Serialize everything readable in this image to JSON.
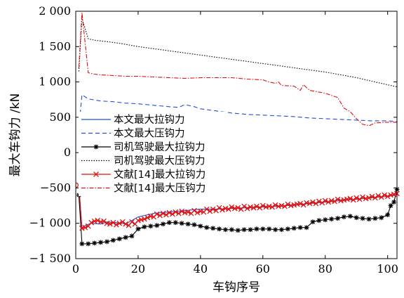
{
  "chart_data": {
    "type": "line",
    "xlabel": "车钩序号",
    "ylabel": "最大车钩力 /kN",
    "xlim": [
      0,
      103
    ],
    "ylim": [
      -1500,
      2000
    ],
    "x_ticks": [
      0,
      20,
      40,
      60,
      80,
      100
    ],
    "x_tick_labels": [
      "0",
      "20",
      "40",
      "60",
      "80",
      "100"
    ],
    "y_ticks": [
      -1500,
      -1000,
      -500,
      0,
      500,
      1000,
      1500,
      2000
    ],
    "y_tick_labels": [
      "−1 500",
      "−1 000",
      "−500",
      "0",
      "500",
      "1 000",
      "1 500",
      "2 000"
    ],
    "grid": false,
    "legend_position": "center-left",
    "series": [
      {
        "name": "本文最大拉钩力",
        "color": "#1f4fd8",
        "dash": "solid",
        "marker": "none",
        "x": [
          1,
          2,
          3,
          5,
          8,
          10,
          13,
          16,
          18,
          20,
          25,
          30,
          35,
          40,
          45,
          50,
          55,
          60,
          65,
          70,
          75,
          80,
          85,
          90,
          95,
          100,
          103
        ],
        "y": [
          -480,
          -1080,
          -1030,
          -1000,
          -1010,
          -980,
          -990,
          -1010,
          -960,
          -910,
          -860,
          -840,
          -820,
          -800,
          -800,
          -790,
          -780,
          -770,
          -760,
          -740,
          -720,
          -700,
          -680,
          -660,
          -640,
          -620,
          -600
        ]
      },
      {
        "name": "本文最大压钩力",
        "color": "#1f4fd8",
        "dash": "6,4",
        "marker": "none",
        "x": [
          1,
          2,
          4,
          8,
          12,
          16,
          20,
          25,
          30,
          33,
          35,
          38,
          40,
          45,
          50,
          55,
          60,
          65,
          70,
          75,
          80,
          85,
          90,
          95,
          100,
          103
        ],
        "y": [
          350,
          820,
          760,
          730,
          720,
          700,
          690,
          670,
          650,
          640,
          680,
          650,
          620,
          590,
          560,
          540,
          530,
          520,
          510,
          490,
          480,
          470,
          460,
          450,
          450,
          440
        ]
      },
      {
        "name": "司机驾驶最大拉钩力",
        "color": "#000000",
        "dash": "solid",
        "marker": "asterisk",
        "x": [
          1,
          2,
          4,
          6,
          8,
          10,
          12,
          14,
          16,
          18,
          20,
          22,
          24,
          26,
          28,
          30,
          32,
          34,
          36,
          38,
          40,
          42,
          44,
          46,
          48,
          50,
          52,
          54,
          56,
          58,
          60,
          62,
          64,
          66,
          68,
          70,
          72,
          74,
          76,
          78,
          80,
          82,
          84,
          86,
          88,
          90,
          92,
          94,
          96,
          98,
          100,
          101,
          102,
          103
        ],
        "y": [
          -600,
          -1290,
          -1290,
          -1280,
          -1270,
          -1260,
          -1240,
          -1220,
          -1200,
          -1180,
          -1080,
          -1050,
          -1040,
          -1030,
          -1010,
          -990,
          -990,
          -1000,
          -1010,
          -1020,
          -1040,
          -1060,
          -1070,
          -1080,
          -1090,
          -1090,
          -1100,
          -1090,
          -1090,
          -1080,
          -1080,
          -1080,
          -1090,
          -1090,
          -1080,
          -1070,
          -1060,
          -1060,
          -980,
          -960,
          -950,
          -940,
          -930,
          -910,
          -900,
          -920,
          -930,
          -940,
          -930,
          -920,
          -880,
          -750,
          -700,
          -520
        ]
      },
      {
        "name": "司机驾驶最大压钩力",
        "color": "#000000",
        "dash": "1.5,2",
        "marker": "none",
        "x": [
          1,
          2,
          4,
          6,
          10,
          15,
          20,
          25,
          30,
          35,
          40,
          45,
          50,
          55,
          60,
          65,
          70,
          75,
          80,
          85,
          90,
          95,
          100,
          103
        ],
        "y": [
          1150,
          1900,
          1610,
          1590,
          1570,
          1540,
          1500,
          1470,
          1440,
          1410,
          1380,
          1350,
          1320,
          1290,
          1260,
          1230,
          1200,
          1170,
          1140,
          1100,
          1060,
          1010,
          960,
          930
        ]
      },
      {
        "name": "文献[14]最大拉钩力",
        "color": "#dd1111",
        "dash": "solid",
        "marker": "x",
        "x": [
          1,
          2,
          3,
          4,
          5,
          6,
          7,
          8,
          9,
          10,
          11,
          12,
          13,
          14,
          15,
          16,
          17,
          18,
          19,
          20,
          21,
          22,
          23,
          24,
          25,
          26,
          27,
          28,
          29,
          30,
          31,
          32,
          33,
          34,
          35,
          36,
          37,
          38,
          39,
          40,
          41,
          42,
          43,
          44,
          45,
          46,
          47,
          48,
          49,
          50,
          51,
          52,
          53,
          54,
          55,
          56,
          57,
          58,
          59,
          60,
          61,
          62,
          63,
          64,
          65,
          66,
          67,
          68,
          69,
          70,
          71,
          72,
          73,
          74,
          75,
          76,
          77,
          78,
          79,
          80,
          81,
          82,
          83,
          84,
          85,
          86,
          87,
          88,
          89,
          90,
          91,
          92,
          93,
          94,
          95,
          96,
          97,
          98,
          99,
          100,
          101,
          102,
          103
        ],
        "y": [
          -460,
          -1070,
          -1060,
          -1040,
          -990,
          -970,
          -960,
          -980,
          -970,
          -1000,
          -1010,
          -990,
          -1020,
          -1000,
          -980,
          -1010,
          -1030,
          -980,
          -1010,
          -960,
          -950,
          -940,
          -920,
          -900,
          -910,
          -870,
          -890,
          -860,
          -880,
          -850,
          -870,
          -840,
          -860,
          -830,
          -850,
          -840,
          -860,
          -820,
          -850,
          -830,
          -840,
          -800,
          -830,
          -800,
          -820,
          -780,
          -810,
          -790,
          -800,
          -770,
          -790,
          -780,
          -800,
          -760,
          -790,
          -770,
          -780,
          -760,
          -780,
          -750,
          -770,
          -760,
          -770,
          -740,
          -760,
          -750,
          -760,
          -730,
          -750,
          -740,
          -730,
          -720,
          -740,
          -710,
          -720,
          -700,
          -720,
          -690,
          -710,
          -680,
          -700,
          -680,
          -690,
          -660,
          -680,
          -670,
          -660,
          -650,
          -670,
          -640,
          -660,
          -630,
          -650,
          -640,
          -620,
          -640,
          -610,
          -630,
          -600,
          -620,
          -600,
          -590,
          -580
        ]
      },
      {
        "name": "文献[14]最大压钩力",
        "color": "#dd1111",
        "dash": "6,2,1.5,2",
        "marker": "none",
        "x": [
          1,
          2,
          4,
          6,
          8,
          12,
          16,
          20,
          25,
          30,
          35,
          40,
          45,
          50,
          55,
          60,
          62,
          64,
          65,
          66,
          70,
          72,
          73,
          75,
          80,
          84,
          86,
          88,
          90,
          92,
          94,
          96,
          100,
          103
        ],
        "y": [
          1200,
          1980,
          1130,
          1110,
          1100,
          1090,
          1080,
          1080,
          1070,
          1060,
          1050,
          1060,
          1060,
          1060,
          1040,
          1030,
          1000,
          980,
          1000,
          950,
          940,
          880,
          960,
          880,
          840,
          780,
          630,
          580,
          480,
          400,
          380,
          420,
          430,
          430
        ]
      }
    ]
  }
}
